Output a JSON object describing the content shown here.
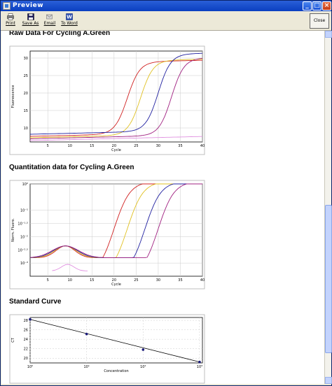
{
  "window": {
    "title": "Preview"
  },
  "toolbar": {
    "print_label": "Print",
    "save_label": "Save As",
    "email_label": "Email",
    "word_label": "To Word",
    "close_label": "Close"
  },
  "sections": {
    "raw_title": "Raw Data For Cycling A.Green",
    "quant_title": "Quantitation data for Cycling A.Green",
    "std_title": "Standard Curve"
  },
  "colors": {
    "red": "#d02020",
    "yellow": "#e0c020",
    "blue": "#2020a0",
    "purple": "#a02080",
    "pink": "#e090e0"
  },
  "chart_data": [
    {
      "type": "line",
      "title": "Raw Data For Cycling A.Green",
      "xlabel": "Cycle",
      "ylabel": "Fluorescence",
      "xlim": [
        1,
        40
      ],
      "ylim": [
        6,
        32
      ],
      "xticks": [
        5,
        10,
        15,
        20,
        25,
        30,
        35,
        40
      ],
      "yticks": [
        10,
        15,
        20,
        25,
        30
      ],
      "grid": true,
      "series": [
        {
          "color": "#d02020",
          "midpoint": 23,
          "start": 7.6,
          "end": 28.2
        },
        {
          "color": "#e0c020",
          "midpoint": 26,
          "start": 7.2,
          "end": 28.5
        },
        {
          "color": "#2020a0",
          "midpoint": 30,
          "start": 8.2,
          "end": 30.2
        },
        {
          "color": "#a02080",
          "midpoint": 33,
          "start": 6.9,
          "end": 28.9
        },
        {
          "color": "#e090e0",
          "midpoint": 99,
          "start": 6.4,
          "end": 6.4
        }
      ]
    },
    {
      "type": "line",
      "title": "Quantitation data for Cycling A.Green",
      "xlabel": "Cycle",
      "ylabel": "Norm. Fluoro.",
      "xlim": [
        1,
        40
      ],
      "ylim": [
        -3.5,
        0
      ],
      "log_scale": true,
      "xticks": [
        5,
        10,
        15,
        20,
        25,
        30,
        35,
        40
      ],
      "yticks": [
        {
          "value": 0,
          "label": "10⁰"
        },
        {
          "value": -1,
          "label": "10⁻¹"
        },
        {
          "value": -1.5,
          "label": "10⁻¹·⁵"
        },
        {
          "value": -2,
          "label": "10⁻²"
        },
        {
          "value": -2.5,
          "label": "10⁻²·⁵"
        },
        {
          "value": -3,
          "label": "10⁻³"
        }
      ],
      "grid": true
    },
    {
      "type": "scatter",
      "title": "Standard Curve",
      "xlabel": "Concentration",
      "ylabel": "CT",
      "xlim": [
        0,
        3.05
      ],
      "ylim": [
        19,
        28.6
      ],
      "xticks": [
        {
          "value": 0,
          "label": "10⁰"
        },
        {
          "value": 1,
          "label": "10¹"
        },
        {
          "value": 2,
          "label": "10²"
        },
        {
          "value": 3,
          "label": "10³"
        }
      ],
      "yticks": [
        20,
        22,
        24,
        26,
        28
      ],
      "grid": true,
      "points": [
        {
          "x": 0,
          "y": 28.2
        },
        {
          "x": 1,
          "y": 25.1
        },
        {
          "x": 2,
          "y": 21.8
        },
        {
          "x": 3,
          "y": 19.2
        }
      ],
      "fit_line": {
        "x": [
          0,
          3
        ],
        "y": [
          28.2,
          19.2
        ]
      }
    }
  ]
}
